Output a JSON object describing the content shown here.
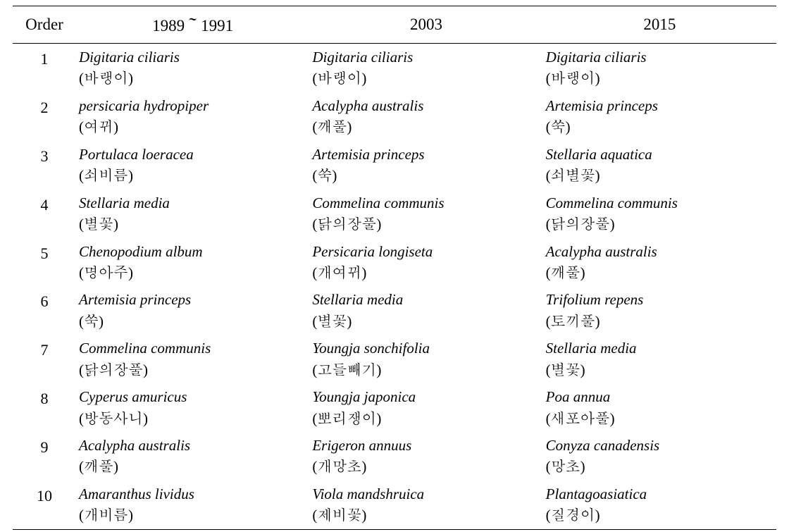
{
  "columns": {
    "order": "Order",
    "period1": "1989～1991",
    "period2": "2003",
    "period3": "2015"
  },
  "column_widths": {
    "order": 90,
    "period1": 340,
    "period2": 340,
    "period3": 330
  },
  "font": {
    "header_size": 23,
    "cell_size": 21,
    "family": "Times New Roman / Batang serif",
    "sci_style": "italic"
  },
  "colors": {
    "background": "#ffffff",
    "text": "#000000",
    "rule": "#000000"
  },
  "rows": [
    {
      "order": "1",
      "p1_sci": "Digitaria ciliaris",
      "p1_kor": "(바랭이)",
      "p2_sci": "Digitaria ciliaris",
      "p2_kor": "(바랭이)",
      "p3_sci": "Digitaria ciliaris",
      "p3_kor": "(바랭이)"
    },
    {
      "order": "2",
      "p1_sci": "persicaria hydropiper",
      "p1_kor": "(여뀌)",
      "p2_sci": "Acalypha australis",
      "p2_kor": "(깨풀)",
      "p3_sci": "Artemisia princeps",
      "p3_kor": "(쑥)"
    },
    {
      "order": "3",
      "p1_sci": "Portulaca loeracea",
      "p1_kor": "(쇠비름)",
      "p2_sci": "Artemisia princeps",
      "p2_kor": "(쑥)",
      "p3_sci": "Stellaria aquatica",
      "p3_kor": "(쇠별꽃)"
    },
    {
      "order": "4",
      "p1_sci": "Stellaria media",
      "p1_kor": "(별꽃)",
      "p2_sci": "Commelina communis",
      "p2_kor": "(닭의장풀)",
      "p3_sci": "Commelina communis",
      "p3_kor": "(닭의장풀)"
    },
    {
      "order": "5",
      "p1_sci": "Chenopodium album",
      "p1_kor": "(명아주)",
      "p2_sci": "Persicaria longiseta",
      "p2_kor": "(개여뀌)",
      "p3_sci": "Acalypha australis",
      "p3_kor": "(깨풀)"
    },
    {
      "order": "6",
      "p1_sci": "Artemisia princeps",
      "p1_kor": "(쑥)",
      "p2_sci": "Stellaria media",
      "p2_kor": "(별꽃)",
      "p3_sci": "Trifolium repens",
      "p3_kor": "(토끼풀)"
    },
    {
      "order": "7",
      "p1_sci": "Commelina communis",
      "p1_kor": "(닭의장풀)",
      "p2_sci": "Youngja sonchifolia",
      "p2_kor": "(고들빼기)",
      "p3_sci": "Stellaria media",
      "p3_kor": "(별꽃)"
    },
    {
      "order": "8",
      "p1_sci": "Cyperus amuricus",
      "p1_kor": "(방동사니)",
      "p2_sci": "Youngja japonica",
      "p2_kor": "(뽀리쟁이)",
      "p3_sci": "Poa annua",
      "p3_kor": "(새포아풀)"
    },
    {
      "order": "9",
      "p1_sci": "Acalypha australis",
      "p1_kor": "(깨풀)",
      "p2_sci": "Erigeron annuus",
      "p2_kor": "(개망초)",
      "p3_sci": "Conyza canadensis",
      "p3_kor": "(망초)"
    },
    {
      "order": "10",
      "p1_sci": "Amaranthus lividus",
      "p1_kor": "(개비름)",
      "p2_sci": "Viola mandshruica",
      "p2_kor": "(제비꽃)",
      "p3_sci": "Plantagoasiatica",
      "p3_kor": "(질경이)"
    }
  ]
}
